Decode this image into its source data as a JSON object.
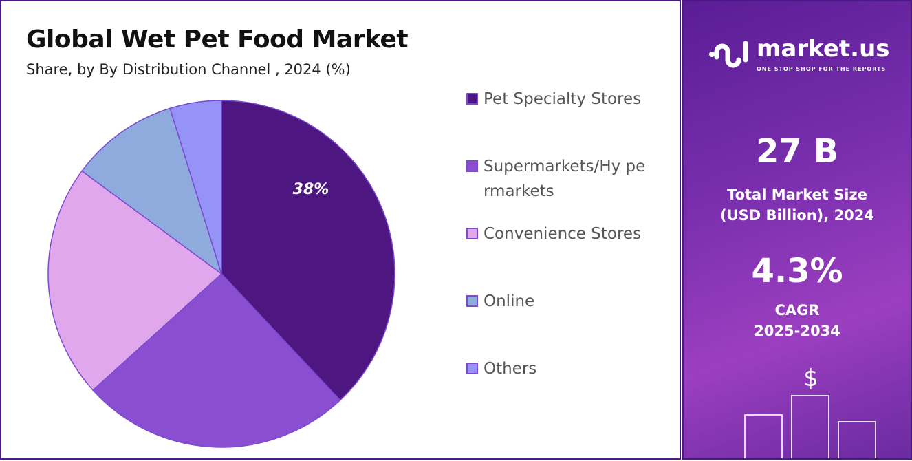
{
  "title": "Global Wet Pet Food Market",
  "subtitle": "Share, by By Distribution Channel , 2024 (%)",
  "chart_data": {
    "type": "pie",
    "title": "Global Wet Pet Food Market",
    "subtitle": "Share, by By Distribution Channel , 2024 (%)",
    "categories": [
      "Pet Specialty Stores",
      "Supermarkets/Hypermarkets",
      "Convenience Stores",
      "Online",
      "Others"
    ],
    "legend_labels": [
      "Pet Specialty Stores",
      "Supermarkets/Hy permarkets",
      "Convenience Stores",
      "Online",
      "Others"
    ],
    "values": [
      38,
      25.3,
      21.8,
      10.1,
      4.8
    ],
    "colors": [
      "#4e1681",
      "#8a4fd1",
      "#e1a7ec",
      "#8faadc",
      "#9592f8"
    ],
    "data_labels": [
      "38%",
      "",
      "",
      "",
      ""
    ],
    "legend_position": "right",
    "start_angle": "top, clockwise"
  },
  "side": {
    "logo_name": "market.us",
    "logo_tagline": "ONE STOP SHOP FOR THE REPORTS",
    "market_size": "27 B",
    "market_size_label_1": "Total Market Size",
    "market_size_label_2": "(USD Billion), 2024",
    "cagr": "4.3%",
    "cagr_label_1": "CAGR",
    "cagr_label_2": "2025-2034",
    "dollar_symbol": "$"
  }
}
